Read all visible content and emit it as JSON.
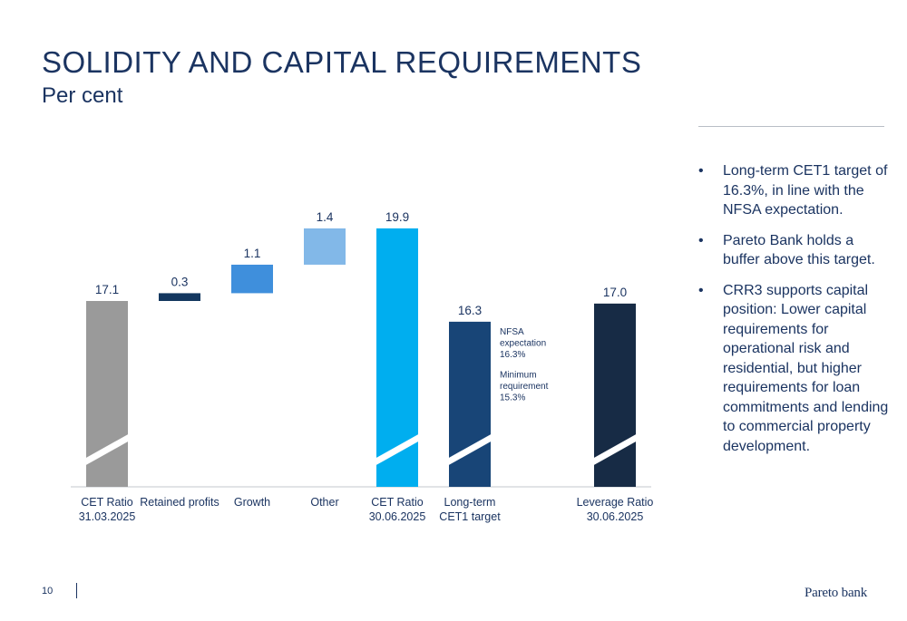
{
  "header": {
    "title": "SOLIDITY AND CAPITAL REQUIREMENTS",
    "subtitle": "Per cent"
  },
  "bullets": [
    "Long-term CET1 target of 16.3%, in line with the NFSA expectation.",
    "Pareto Bank holds a buffer above this target.",
    "CRR3 supports capital position: Lower capital requirements for operational risk and residential, but higher requirements for loan commitments and lending to commercial property development."
  ],
  "bullet_glyph": "•",
  "footer": {
    "page_number": "10",
    "logo": "Pareto bank"
  },
  "chart_data": {
    "type": "bar",
    "subtype": "waterfall",
    "axis_break": true,
    "categories": [
      [
        "CET Ratio",
        "31.03.2025"
      ],
      [
        "Retained profits"
      ],
      [
        "Growth"
      ],
      [
        "Other"
      ],
      [
        "CET Ratio",
        "30.06.2025"
      ],
      [
        "Long-term",
        "CET1 target"
      ],
      [
        ""
      ],
      [
        "Leverage Ratio",
        "30.06.2025"
      ]
    ],
    "bars": [
      {
        "kind": "total",
        "value": 17.1,
        "label": "17.1",
        "color": "#9a9a9a"
      },
      {
        "kind": "delta",
        "base": 17.1,
        "value": 0.3,
        "label": "0.3",
        "color": "#13375f"
      },
      {
        "kind": "delta",
        "base": 17.4,
        "value": 1.1,
        "label": "1.1",
        "color": "#3f8fdc"
      },
      {
        "kind": "delta",
        "base": 18.5,
        "value": 1.4,
        "label": "1.4",
        "color": "#82b8e8"
      },
      {
        "kind": "total",
        "value": 19.9,
        "label": "19.9",
        "color": "#00aeef"
      },
      {
        "kind": "total",
        "value": 16.3,
        "label": "16.3",
        "color": "#184577"
      },
      null,
      {
        "kind": "total",
        "value": 17.0,
        "label": "17.0",
        "color": "#172b45"
      }
    ],
    "annotations": [
      [
        "NFSA",
        "expectation",
        "16.3%"
      ],
      [
        "Minimum",
        "requirement",
        "15.3%"
      ]
    ],
    "colors": {
      "label": "#1b3461",
      "axis": "#c3c7cd"
    }
  }
}
